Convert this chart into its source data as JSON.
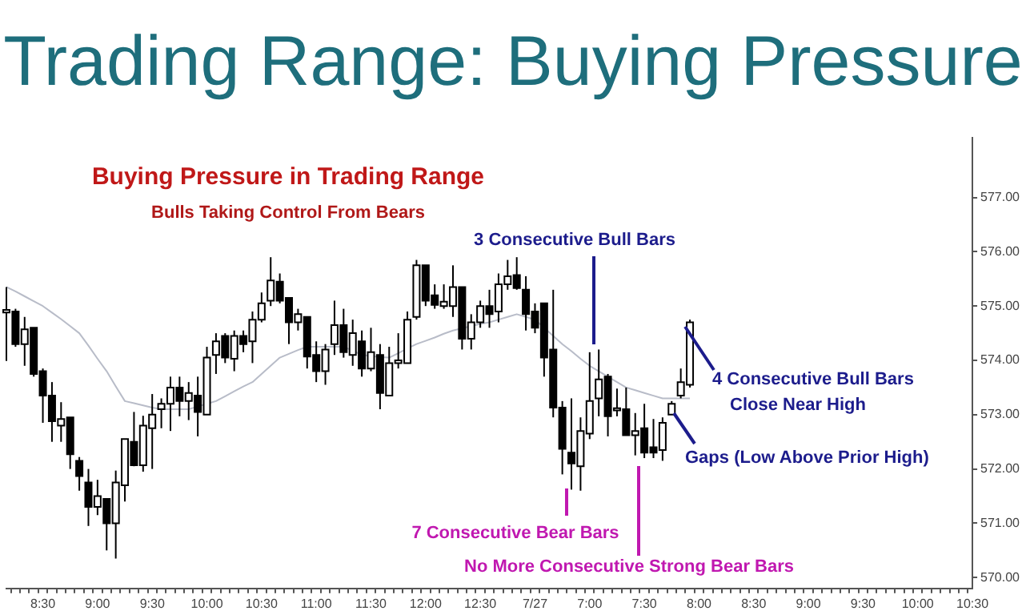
{
  "chart_data": {
    "type": "candlestick",
    "title": "Trading Range: Buying Pressure",
    "subtitle": "Buying Pressure in Trading Range",
    "annotations": [
      "Bulls Taking Control From Bears",
      "3 Consecutive Bull Bars",
      "7 Consecutive Bear Bars",
      "No More Consecutive Strong Bear Bars",
      "4 Consecutive Bull Bars",
      "Close Near High",
      "Gaps (Low Above Prior High)"
    ],
    "categories": [
      null,
      null,
      null,
      null,
      "8:30",
      null,
      null,
      null,
      null,
      null,
      "9:00",
      null,
      null,
      null,
      null,
      null,
      "9:30",
      null,
      null,
      null,
      null,
      null,
      "10:00",
      null,
      null,
      null,
      null,
      null,
      "10:30",
      null,
      null,
      null,
      null,
      null,
      "11:00",
      null,
      null,
      null,
      null,
      null,
      "11:30",
      null,
      null,
      null,
      null,
      null,
      "12:00",
      null,
      null,
      null,
      null,
      null,
      "12:30",
      null,
      null,
      null,
      null,
      null,
      "7/27",
      null,
      null,
      null,
      null,
      null,
      "7:00",
      null,
      null,
      null,
      null,
      null,
      "7:30",
      null,
      null,
      null,
      null,
      null,
      "8:00",
      null,
      null,
      null,
      null,
      null,
      "8:30",
      null,
      null,
      null,
      null,
      null,
      "9:00",
      null,
      null,
      null,
      null,
      null,
      "9:30",
      null,
      null,
      null,
      null,
      null,
      "10:00",
      null,
      null,
      null,
      null,
      null,
      "10:30"
    ],
    "ohlc": [
      [
        574.88,
        575.35,
        573.99,
        574.93
      ],
      [
        574.9,
        574.95,
        574.25,
        574.3
      ],
      [
        574.3,
        574.8,
        573.9,
        574.57
      ],
      [
        574.6,
        574.6,
        573.7,
        573.75
      ],
      [
        573.8,
        573.85,
        572.85,
        573.35
      ],
      [
        573.35,
        573.6,
        572.5,
        572.88
      ],
      [
        572.8,
        573.23,
        572.5,
        572.92
      ],
      [
        572.95,
        572.95,
        572.0,
        572.27
      ],
      [
        572.15,
        572.22,
        571.6,
        571.87
      ],
      [
        571.75,
        572.0,
        570.95,
        571.3
      ],
      [
        571.3,
        571.8,
        571.15,
        571.5
      ],
      [
        571.45,
        571.45,
        570.5,
        571.0
      ],
      [
        571.0,
        571.97,
        570.35,
        571.75
      ],
      [
        571.7,
        572.55,
        571.4,
        572.55
      ],
      [
        572.5,
        573.05,
        572.05,
        572.07
      ],
      [
        572.07,
        572.98,
        571.95,
        572.8
      ],
      [
        572.75,
        573.38,
        572.0,
        573.0
      ],
      [
        573.1,
        573.3,
        572.75,
        573.2
      ],
      [
        573.2,
        573.7,
        572.7,
        573.5
      ],
      [
        573.5,
        573.7,
        572.97,
        573.25
      ],
      [
        573.25,
        573.6,
        572.9,
        573.4
      ],
      [
        573.35,
        573.7,
        572.6,
        573.05
      ],
      [
        573.0,
        574.25,
        573.0,
        574.05
      ],
      [
        574.1,
        574.5,
        573.75,
        574.35
      ],
      [
        574.45,
        574.5,
        573.95,
        574.05
      ],
      [
        574.03,
        574.55,
        573.8,
        574.45
      ],
      [
        574.45,
        574.55,
        574.15,
        574.3
      ],
      [
        574.35,
        574.9,
        573.95,
        574.75
      ],
      [
        574.75,
        575.25,
        574.7,
        575.05
      ],
      [
        575.1,
        575.9,
        575.0,
        575.47
      ],
      [
        575.45,
        575.6,
        575.05,
        575.1
      ],
      [
        575.15,
        575.15,
        574.3,
        574.7
      ],
      [
        574.7,
        574.95,
        574.55,
        574.85
      ],
      [
        574.8,
        574.8,
        573.85,
        574.07
      ],
      [
        574.1,
        574.35,
        573.6,
        573.8
      ],
      [
        573.8,
        574.3,
        573.55,
        574.2
      ],
      [
        574.3,
        575.1,
        574.1,
        574.65
      ],
      [
        574.65,
        574.95,
        574.05,
        574.15
      ],
      [
        574.1,
        574.75,
        573.9,
        574.5
      ],
      [
        574.35,
        574.55,
        573.7,
        573.85
      ],
      [
        573.85,
        574.6,
        573.8,
        574.15
      ],
      [
        574.1,
        574.3,
        573.1,
        573.4
      ],
      [
        573.35,
        574.25,
        573.35,
        573.95
      ],
      [
        573.95,
        574.5,
        573.85,
        574.0
      ],
      [
        573.95,
        574.9,
        573.95,
        574.75
      ],
      [
        574.8,
        575.85,
        574.75,
        575.75
      ],
      [
        575.75,
        575.75,
        575.0,
        575.1
      ],
      [
        575.2,
        575.4,
        574.95,
        575.02
      ],
      [
        575.0,
        575.4,
        574.95,
        575.08
      ],
      [
        575.0,
        575.75,
        574.8,
        575.35
      ],
      [
        575.35,
        575.35,
        574.2,
        574.4
      ],
      [
        574.4,
        574.85,
        574.2,
        574.7
      ],
      [
        574.7,
        575.1,
        574.6,
        575.0
      ],
      [
        575.0,
        575.3,
        574.6,
        574.85
      ],
      [
        574.9,
        575.6,
        574.7,
        575.4
      ],
      [
        575.4,
        575.85,
        575.3,
        575.55
      ],
      [
        575.57,
        575.9,
        575.3,
        575.33
      ],
      [
        575.3,
        575.55,
        574.55,
        574.85
      ],
      [
        574.9,
        575.05,
        574.5,
        574.6
      ],
      [
        575.05,
        575.05,
        573.7,
        574.05
      ],
      [
        574.2,
        575.3,
        572.95,
        573.13
      ],
      [
        573.13,
        573.25,
        571.9,
        572.37
      ],
      [
        572.3,
        573.3,
        571.62,
        572.1
      ],
      [
        572.05,
        572.95,
        571.6,
        572.7
      ],
      [
        572.65,
        574.15,
        572.55,
        573.25
      ],
      [
        573.3,
        574.2,
        572.97,
        573.65
      ],
      [
        573.7,
        573.75,
        572.6,
        572.97
      ],
      [
        573.08,
        573.48,
        572.97,
        573.12
      ],
      [
        573.1,
        573.5,
        572.62,
        572.62
      ],
      [
        572.62,
        573.03,
        572.25,
        572.7
      ],
      [
        572.75,
        573.2,
        572.2,
        572.3
      ],
      [
        572.4,
        572.92,
        572.2,
        572.3
      ],
      [
        572.35,
        572.95,
        572.15,
        572.85
      ],
      [
        573.0,
        573.25,
        573.0,
        573.2
      ],
      [
        573.35,
        573.85,
        573.3,
        573.6
      ],
      [
        573.55,
        574.75,
        573.5,
        574.7
      ],
      null,
      null,
      null,
      null,
      null,
      null,
      null,
      null,
      null,
      null,
      null,
      null,
      null,
      null,
      null,
      null,
      null,
      null,
      null,
      null,
      null,
      null,
      null,
      null,
      null,
      null,
      null,
      null,
      null,
      null,
      null
    ],
    "series": [
      {
        "type": "line",
        "color": "#b8bcc8",
        "values": [
          575.35,
          575.27,
          575.18,
          575.09,
          575.0,
          574.88,
          574.76,
          574.63,
          574.5,
          574.27,
          574.03,
          573.8,
          573.52,
          573.25,
          573.21,
          573.17,
          573.13,
          573.1,
          573.1,
          573.1,
          573.1,
          573.15,
          573.2,
          573.25,
          573.34,
          573.43,
          573.52,
          573.6,
          573.75,
          573.9,
          574.05,
          574.12,
          574.19,
          574.25,
          574.25,
          574.25,
          574.25,
          574.25,
          574.18,
          574.1,
          574.08,
          574.06,
          574.05,
          574.13,
          574.22,
          574.3,
          574.36,
          574.42,
          574.49,
          574.55,
          574.59,
          574.63,
          574.67,
          574.7,
          574.75,
          574.8,
          574.85,
          574.8,
          574.75,
          574.6,
          574.45,
          574.3,
          574.17,
          574.03,
          573.9,
          573.8,
          573.7,
          573.6,
          573.5,
          573.45,
          573.4,
          573.35,
          573.3,
          573.3,
          573.3,
          573.3,
          null,
          null,
          null,
          null,
          null,
          null,
          null,
          null,
          null,
          null,
          null,
          null,
          null,
          null,
          null,
          null,
          null,
          null,
          null,
          null,
          null,
          null,
          null,
          null,
          null,
          null,
          null,
          null,
          null,
          null,
          null
        ]
      }
    ],
    "ylim": [
      569.8,
      578.1
    ],
    "yticks": [
      {
        "value": 570,
        "label": "570.00"
      },
      {
        "value": 571,
        "label": "571.00"
      },
      {
        "value": 572,
        "label": "572.00"
      },
      {
        "value": 573,
        "label": "573.00"
      },
      {
        "value": 574,
        "label": "574.00"
      },
      {
        "value": 575,
        "label": "575.00"
      },
      {
        "value": 576,
        "label": "576.00"
      },
      {
        "value": 577,
        "label": "577.00"
      }
    ],
    "legend": false
  }
}
